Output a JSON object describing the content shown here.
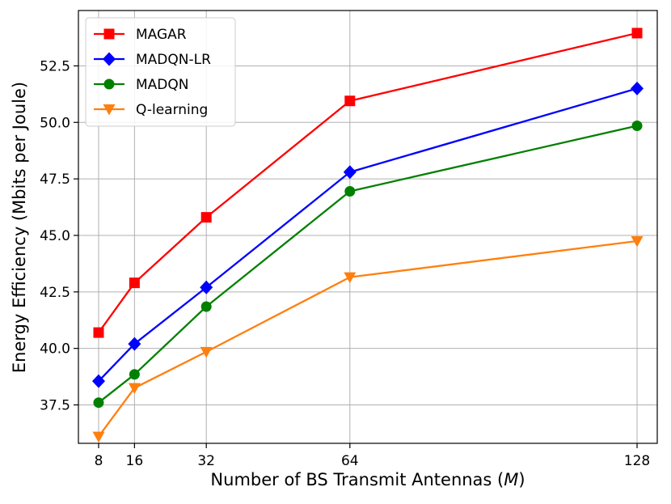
{
  "chart_data": {
    "type": "line",
    "title": "",
    "xlabel_main": "Number of BS Transmit Antennas (",
    "xlabel_var": "M",
    "xlabel_end": ")",
    "ylabel": "Energy Efficiency (Mbits per Joule)",
    "x": [
      8,
      16,
      32,
      64,
      128
    ],
    "x_ticks": [
      "8",
      "16",
      "32",
      "64",
      "128"
    ],
    "y_ticks": [
      "37.5",
      "40.0",
      "42.5",
      "45.0",
      "47.5",
      "50.0",
      "52.5"
    ],
    "y_tick_values": [
      37.5,
      40.0,
      42.5,
      45.0,
      47.5,
      50.0,
      52.5
    ],
    "xlim": [
      3.5,
      132.5
    ],
    "ylim": [
      35.8,
      54.95
    ],
    "grid": true,
    "legend_position": "upper-left",
    "series": [
      {
        "name": "MAGAR",
        "color": "#ff0000",
        "marker": "square",
        "values": [
          40.7,
          42.9,
          45.8,
          50.95,
          53.95
        ]
      },
      {
        "name": "MADQN-LR",
        "color": "#0000ff",
        "marker": "diamond",
        "values": [
          38.55,
          40.2,
          42.7,
          47.8,
          51.5
        ]
      },
      {
        "name": "MADQN",
        "color": "#008000",
        "marker": "circle",
        "values": [
          37.6,
          38.85,
          41.85,
          46.95,
          49.85
        ]
      },
      {
        "name": "Q-learning",
        "color": "#ff7f0e",
        "marker": "triangle-down",
        "values": [
          36.1,
          38.25,
          39.85,
          43.15,
          44.75
        ]
      }
    ]
  }
}
